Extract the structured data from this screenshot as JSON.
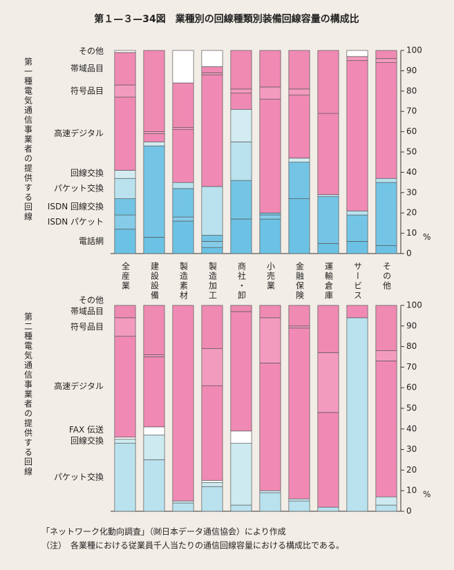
{
  "title": "第１—３—34図　業種別の回線種類別装備回線容量の構成比",
  "source": "「ネットワーク化動向調査」（㈶日本データ通信協会）により作成",
  "note": "（注）　各業種における従業員千人当たりの通信回線容量における構成比である。",
  "chart_data": [
    {
      "type": "bar",
      "stacked": true,
      "y_label": "第一種電気通信事業者の提供する回線",
      "unit": "%",
      "categories": [
        "全産業",
        "建設設備",
        "製造素材",
        "製造加工",
        "商社・卸",
        "小売業",
        "金融保険",
        "運輸倉庫",
        "サービス",
        "その他"
      ],
      "ylim": [
        0,
        100
      ],
      "yticks": [
        0,
        10,
        20,
        30,
        40,
        50,
        60,
        70,
        80,
        90,
        100
      ],
      "series": [
        {
          "name": "電話網",
          "color": "#6cc2e4",
          "values": [
            12,
            8,
            16,
            3,
            17,
            17,
            27,
            5,
            6,
            4
          ]
        },
        {
          "name": "ISDN パケット",
          "color": "#86cce8",
          "values": [
            7,
            0,
            2,
            3,
            0,
            2,
            0,
            0,
            0,
            0
          ]
        },
        {
          "name": "ISDN 回線交換",
          "color": "#74c5e5",
          "values": [
            8,
            45,
            14,
            3,
            19,
            1,
            18,
            23,
            13,
            31
          ]
        },
        {
          "name": "パケット交換",
          "color": "#b9e2ee",
          "values": [
            10,
            0,
            3,
            24,
            19,
            0,
            0,
            1,
            2,
            2
          ]
        },
        {
          "name": "回線交換",
          "color": "#d3ecf1",
          "values": [
            4,
            2,
            0,
            0,
            16,
            0,
            2,
            0,
            0,
            0
          ]
        },
        {
          "name": "高速デジタル",
          "color": "#f08ab4",
          "values": [
            36,
            4,
            26,
            55,
            8,
            56,
            31,
            40,
            74,
            57
          ]
        },
        {
          "name": "符号品目",
          "color": "#f39bbf",
          "values": [
            6,
            1,
            1,
            1,
            2,
            6,
            3,
            0,
            2,
            2
          ]
        },
        {
          "name": "帯域品目",
          "color": "#ef8ab3",
          "values": [
            16,
            40,
            22,
            3,
            19,
            18,
            19,
            31,
            0,
            4
          ]
        },
        {
          "name": "その他",
          "color": "#ffffff",
          "values": [
            1,
            0,
            16,
            8,
            0,
            0,
            0,
            0,
            3,
            0
          ]
        }
      ]
    },
    {
      "type": "bar",
      "stacked": true,
      "y_label": "第二種電気通信事業者の提供する回線",
      "unit": "%",
      "ylim": [
        0,
        100
      ],
      "yticks": [
        0,
        10,
        20,
        30,
        40,
        50,
        60,
        70,
        80,
        90,
        100
      ],
      "series": [
        {
          "name": "パケット交換",
          "color": "#b9e2ee",
          "values": [
            33,
            25,
            4,
            12,
            3,
            9,
            5,
            2,
            94,
            3
          ]
        },
        {
          "name": "回線交換",
          "color": "#cdeaf0",
          "values": [
            2,
            12,
            1,
            2,
            30,
            1,
            1,
            0,
            0,
            4
          ]
        },
        {
          "name": "FAX 伝送",
          "color": "#ffffff",
          "values": [
            1,
            4,
            0,
            1,
            6,
            0,
            0,
            0,
            0,
            0
          ]
        },
        {
          "name": "高速デジタル",
          "color": "#f08ab4",
          "values": [
            49,
            34,
            95,
            46,
            58,
            62,
            83,
            46,
            6,
            66
          ]
        },
        {
          "name": "符号品目",
          "color": "#f39bbf",
          "values": [
            9,
            1,
            0,
            18,
            0,
            22,
            1,
            29,
            0,
            5
          ]
        },
        {
          "name": "帯域品目",
          "color": "#ef8ab3",
          "values": [
            6,
            24,
            0,
            21,
            3,
            6,
            10,
            23,
            0,
            22
          ]
        },
        {
          "name": "その他",
          "color": "#ffffff",
          "values": [
            0,
            0,
            0,
            0,
            0,
            0,
            0,
            0,
            0,
            0
          ]
        }
      ]
    }
  ]
}
